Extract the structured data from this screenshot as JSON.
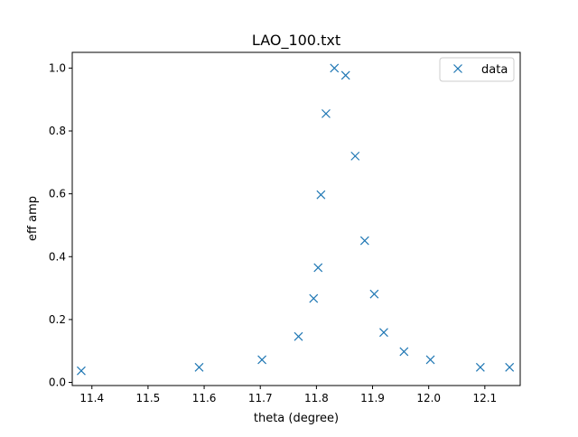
{
  "chart_data": {
    "type": "scatter",
    "title": "LAO_100.txt",
    "xlabel": "theta (degree)",
    "ylabel": "eff amp",
    "xlim": [
      11.365,
      12.163
    ],
    "ylim": [
      -0.01,
      1.05
    ],
    "xticks": [
      11.4,
      11.5,
      11.6,
      11.7,
      11.8,
      11.9,
      12.0,
      12.1
    ],
    "xtick_labels": [
      "11.4",
      "11.5",
      "11.6",
      "11.7",
      "11.8",
      "11.9",
      "12.0",
      "12.1"
    ],
    "yticks": [
      0.0,
      0.2,
      0.4,
      0.6,
      0.8,
      1.0
    ],
    "ytick_labels": [
      "0.0",
      "0.2",
      "0.4",
      "0.6",
      "0.8",
      "1.0"
    ],
    "grid": false,
    "legend_position": "top-right",
    "marker": "x",
    "color": "#1f77b4",
    "series": [
      {
        "name": "data",
        "x": [
          11.381,
          11.591,
          11.703,
          11.768,
          11.795,
          11.803,
          11.808,
          11.817,
          11.832,
          11.852,
          11.869,
          11.886,
          11.903,
          11.92,
          11.956,
          12.003,
          12.092,
          12.144
        ],
        "y": [
          0.037,
          0.048,
          0.072,
          0.146,
          0.267,
          0.365,
          0.597,
          0.855,
          1.0,
          0.977,
          0.72,
          0.451,
          0.281,
          0.159,
          0.098,
          0.072,
          0.048,
          0.048
        ]
      }
    ]
  }
}
